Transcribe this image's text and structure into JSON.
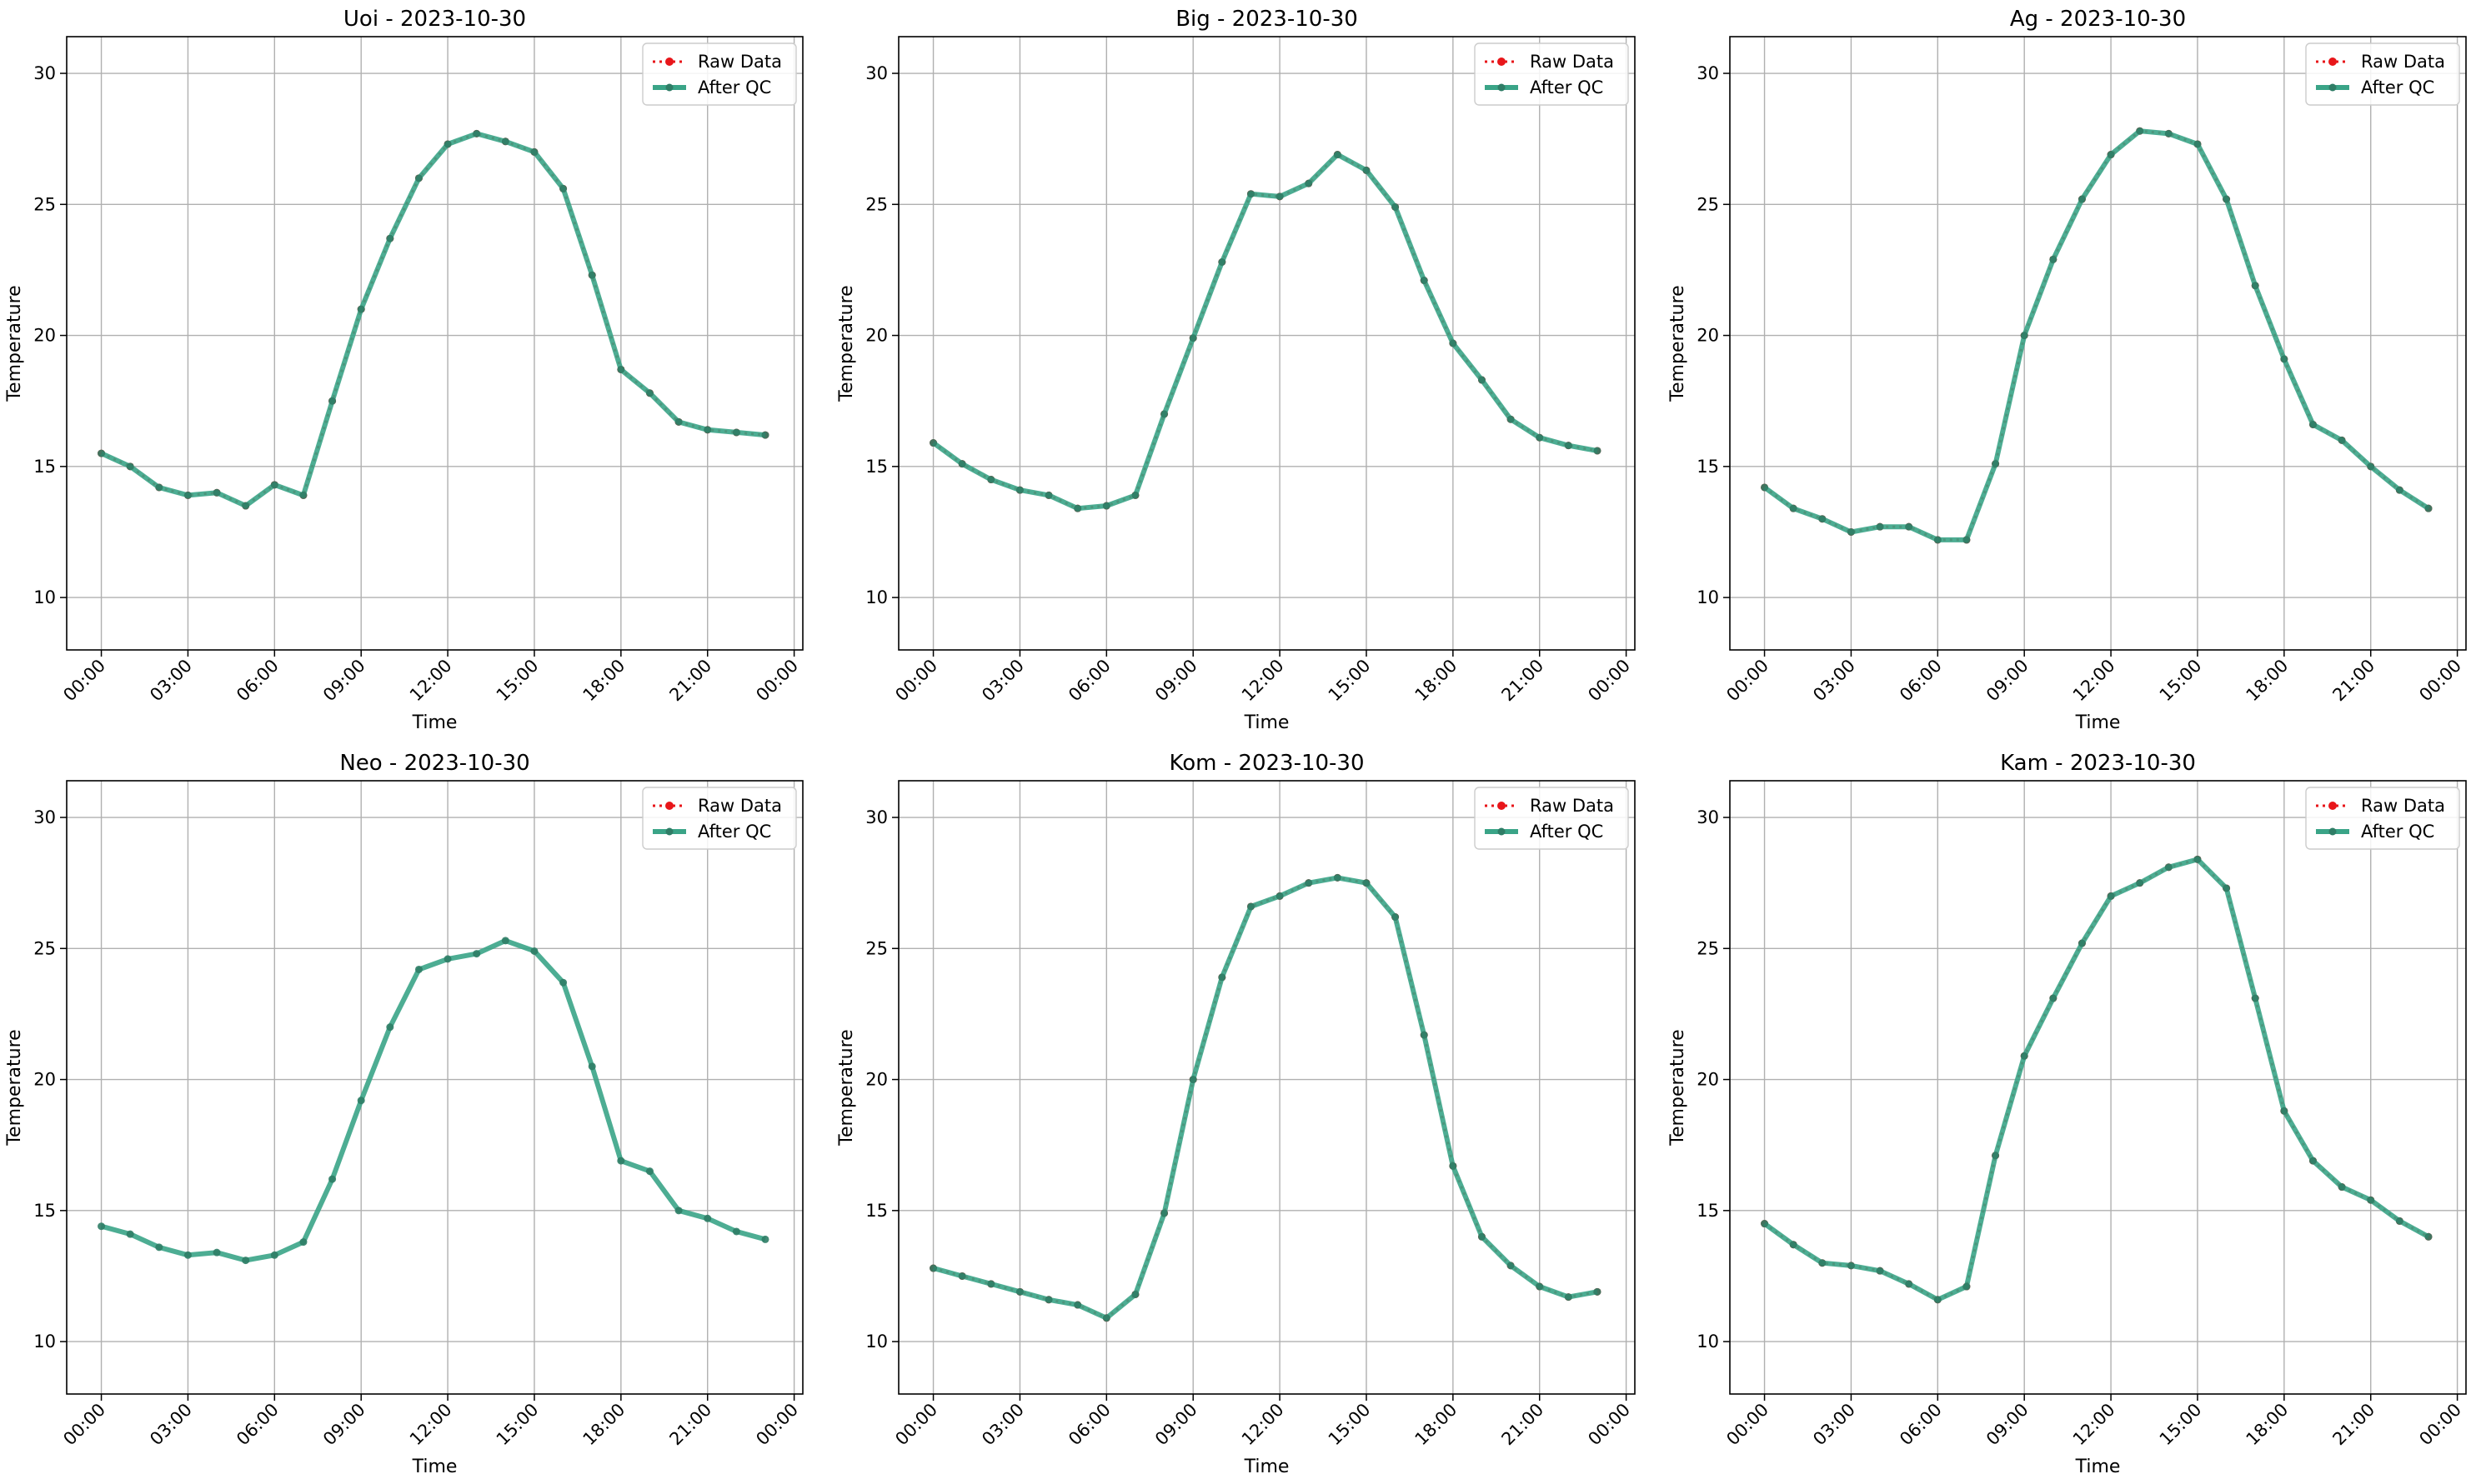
{
  "figure": {
    "legend_labels": {
      "raw": "Raw Data",
      "qc": "After QC"
    },
    "colors": {
      "raw": "#e8161a",
      "qc": "#3aa487",
      "qc_marker": "#2f7d66",
      "grid": "#b0b0b0"
    }
  },
  "chart_data": [
    {
      "type": "line",
      "title": "Uoi - 2023-10-30",
      "xlabel": "Time",
      "ylabel": "Temperature",
      "ylim": [
        8,
        31.4
      ],
      "yticks": [
        10,
        15,
        20,
        25,
        30
      ],
      "xlim_hours": [
        -1.2,
        24.3
      ],
      "xticks": [
        "00:00",
        "03:00",
        "06:00",
        "09:00",
        "12:00",
        "15:00",
        "18:00",
        "21:00",
        "00:00"
      ],
      "grid": true,
      "legend": "top-right",
      "raw_visible": true,
      "x": [
        "00:00",
        "01:00",
        "02:00",
        "03:00",
        "04:00",
        "05:00",
        "06:00",
        "07:00",
        "08:00",
        "09:00",
        "10:00",
        "11:00",
        "12:00",
        "13:00",
        "14:00",
        "15:00",
        "16:00",
        "17:00",
        "18:00",
        "19:00",
        "20:00",
        "21:00",
        "22:00",
        "23:00"
      ],
      "series": [
        {
          "name": "Raw Data",
          "values": [
            15.5,
            15.0,
            14.2,
            13.9,
            14.0,
            13.5,
            14.3,
            13.9,
            17.5,
            21.0,
            23.7,
            26.0,
            27.3,
            27.7,
            27.4,
            27.0,
            25.6,
            22.3,
            18.7,
            17.8,
            16.7,
            16.4,
            16.3,
            16.2
          ]
        },
        {
          "name": "After QC",
          "values": [
            15.5,
            15.0,
            14.2,
            13.9,
            14.0,
            13.5,
            14.3,
            13.9,
            17.5,
            21.0,
            23.7,
            26.0,
            27.3,
            27.7,
            27.4,
            27.0,
            25.6,
            22.3,
            18.7,
            17.8,
            16.7,
            16.4,
            16.3,
            16.2
          ]
        }
      ]
    },
    {
      "type": "line",
      "title": "Big - 2023-10-30",
      "xlabel": "Time",
      "ylabel": "Temperature",
      "ylim": [
        8,
        31.4
      ],
      "yticks": [
        10,
        15,
        20,
        25,
        30
      ],
      "xlim_hours": [
        -1.2,
        24.3
      ],
      "xticks": [
        "00:00",
        "03:00",
        "06:00",
        "09:00",
        "12:00",
        "15:00",
        "18:00",
        "21:00",
        "00:00"
      ],
      "grid": true,
      "legend": "top-right",
      "raw_visible": true,
      "x": [
        "00:00",
        "01:00",
        "02:00",
        "03:00",
        "04:00",
        "05:00",
        "06:00",
        "07:00",
        "08:00",
        "09:00",
        "10:00",
        "11:00",
        "12:00",
        "13:00",
        "14:00",
        "15:00",
        "16:00",
        "17:00",
        "18:00",
        "19:00",
        "20:00",
        "21:00",
        "22:00",
        "23:00"
      ],
      "series": [
        {
          "name": "Raw Data",
          "values": [
            15.9,
            15.1,
            14.5,
            14.1,
            13.9,
            13.4,
            13.5,
            13.9,
            17.0,
            19.9,
            22.8,
            25.4,
            25.3,
            25.8,
            26.9,
            26.3,
            24.9,
            22.1,
            19.7,
            18.3,
            16.8,
            16.1,
            15.8,
            15.6
          ]
        },
        {
          "name": "After QC",
          "values": [
            15.9,
            15.1,
            14.5,
            14.1,
            13.9,
            13.4,
            13.5,
            13.9,
            17.0,
            19.9,
            22.8,
            25.4,
            25.3,
            25.8,
            26.9,
            26.3,
            24.9,
            22.1,
            19.7,
            18.3,
            16.8,
            16.1,
            15.8,
            15.6
          ]
        }
      ]
    },
    {
      "type": "line",
      "title": "Ag - 2023-10-30",
      "xlabel": "Time",
      "ylabel": "Temperature",
      "ylim": [
        8,
        31.4
      ],
      "yticks": [
        10,
        15,
        20,
        25,
        30
      ],
      "xlim_hours": [
        -1.2,
        24.3
      ],
      "xticks": [
        "00:00",
        "03:00",
        "06:00",
        "09:00",
        "12:00",
        "15:00",
        "18:00",
        "21:00",
        "00:00"
      ],
      "grid": true,
      "legend": "top-right",
      "raw_visible": true,
      "x": [
        "00:00",
        "01:00",
        "02:00",
        "03:00",
        "04:00",
        "05:00",
        "06:00",
        "07:00",
        "08:00",
        "09:00",
        "10:00",
        "11:00",
        "12:00",
        "13:00",
        "14:00",
        "15:00",
        "16:00",
        "17:00",
        "18:00",
        "19:00",
        "20:00",
        "21:00",
        "22:00",
        "23:00"
      ],
      "series": [
        {
          "name": "Raw Data",
          "values": [
            14.2,
            13.4,
            13.0,
            12.5,
            12.7,
            12.7,
            12.2,
            12.2,
            15.1,
            20.0,
            22.9,
            25.2,
            26.9,
            27.8,
            27.7,
            27.3,
            25.2,
            21.9,
            19.1,
            16.6,
            16.0,
            15.0,
            14.1,
            13.4
          ]
        },
        {
          "name": "After QC",
          "values": [
            14.2,
            13.4,
            13.0,
            12.5,
            12.7,
            12.7,
            12.2,
            12.2,
            15.1,
            20.0,
            22.9,
            25.2,
            26.9,
            27.8,
            27.7,
            27.3,
            25.2,
            21.9,
            19.1,
            16.6,
            16.0,
            15.0,
            14.1,
            13.4
          ]
        }
      ]
    },
    {
      "type": "line",
      "title": "Neo - 2023-10-30",
      "xlabel": "Time",
      "ylabel": "Temperature",
      "ylim": [
        8,
        31.4
      ],
      "yticks": [
        10,
        15,
        20,
        25,
        30
      ],
      "xlim_hours": [
        -1.2,
        24.3
      ],
      "xticks": [
        "00:00",
        "03:00",
        "06:00",
        "09:00",
        "12:00",
        "15:00",
        "18:00",
        "21:00",
        "00:00"
      ],
      "grid": true,
      "legend": "top-right",
      "raw_visible": false,
      "x": [
        "00:00",
        "01:00",
        "02:00",
        "03:00",
        "04:00",
        "05:00",
        "06:00",
        "07:00",
        "08:00",
        "09:00",
        "10:00",
        "11:00",
        "12:00",
        "13:00",
        "14:00",
        "15:00",
        "16:00",
        "17:00",
        "18:00",
        "19:00",
        "20:00",
        "21:00",
        "22:00",
        "23:00"
      ],
      "series": [
        {
          "name": "Raw Data",
          "values": [
            14.4,
            14.1,
            13.6,
            13.3,
            13.4,
            13.1,
            13.3,
            13.8,
            16.2,
            19.2,
            22.0,
            24.2,
            24.6,
            24.8,
            25.3,
            24.9,
            23.7,
            20.5,
            16.9,
            16.5,
            15.0,
            14.7,
            14.2,
            13.9
          ]
        },
        {
          "name": "After QC",
          "values": [
            14.4,
            14.1,
            13.6,
            13.3,
            13.4,
            13.1,
            13.3,
            13.8,
            16.2,
            19.2,
            22.0,
            24.2,
            24.6,
            24.8,
            25.3,
            24.9,
            23.7,
            20.5,
            16.9,
            16.5,
            15.0,
            14.7,
            14.2,
            13.9
          ]
        }
      ]
    },
    {
      "type": "line",
      "title": "Kom - 2023-10-30",
      "xlabel": "Time",
      "ylabel": "Temperature",
      "ylim": [
        8,
        31.4
      ],
      "yticks": [
        10,
        15,
        20,
        25,
        30
      ],
      "xlim_hours": [
        -1.2,
        24.3
      ],
      "xticks": [
        "00:00",
        "03:00",
        "06:00",
        "09:00",
        "12:00",
        "15:00",
        "18:00",
        "21:00",
        "00:00"
      ],
      "grid": true,
      "legend": "top-right",
      "raw_visible": true,
      "x": [
        "00:00",
        "01:00",
        "02:00",
        "03:00",
        "04:00",
        "05:00",
        "06:00",
        "07:00",
        "08:00",
        "09:00",
        "10:00",
        "11:00",
        "12:00",
        "13:00",
        "14:00",
        "15:00",
        "16:00",
        "17:00",
        "18:00",
        "19:00",
        "20:00",
        "21:00",
        "22:00",
        "23:00"
      ],
      "series": [
        {
          "name": "Raw Data",
          "values": [
            12.8,
            12.5,
            12.2,
            11.9,
            11.6,
            11.4,
            10.9,
            11.8,
            14.9,
            20.0,
            23.9,
            26.6,
            27.0,
            27.5,
            27.7,
            27.5,
            26.2,
            21.7,
            16.7,
            14.0,
            12.9,
            12.1,
            11.7,
            11.9
          ]
        },
        {
          "name": "After QC",
          "values": [
            12.8,
            12.5,
            12.2,
            11.9,
            11.6,
            11.4,
            10.9,
            11.8,
            14.9,
            20.0,
            23.9,
            26.6,
            27.0,
            27.5,
            27.7,
            27.5,
            26.2,
            21.7,
            16.7,
            14.0,
            12.9,
            12.1,
            11.7,
            11.9
          ]
        }
      ]
    },
    {
      "type": "line",
      "title": "Kam - 2023-10-30",
      "xlabel": "Time",
      "ylabel": "Temperature",
      "ylim": [
        8,
        31.4
      ],
      "yticks": [
        10,
        15,
        20,
        25,
        30
      ],
      "xlim_hours": [
        -1.2,
        24.3
      ],
      "xticks": [
        "00:00",
        "03:00",
        "06:00",
        "09:00",
        "12:00",
        "15:00",
        "18:00",
        "21:00",
        "00:00"
      ],
      "grid": true,
      "legend": "top-right",
      "raw_visible": true,
      "x": [
        "00:00",
        "01:00",
        "02:00",
        "03:00",
        "04:00",
        "05:00",
        "06:00",
        "07:00",
        "08:00",
        "09:00",
        "10:00",
        "11:00",
        "12:00",
        "13:00",
        "14:00",
        "15:00",
        "16:00",
        "17:00",
        "18:00",
        "19:00",
        "20:00",
        "21:00",
        "22:00",
        "23:00"
      ],
      "series": [
        {
          "name": "Raw Data",
          "values": [
            14.5,
            13.7,
            13.0,
            12.9,
            12.7,
            12.2,
            11.6,
            12.1,
            17.1,
            20.9,
            23.1,
            25.2,
            27.0,
            27.5,
            28.1,
            28.4,
            27.3,
            23.1,
            18.8,
            16.9,
            15.9,
            15.4,
            14.6,
            14.0
          ]
        },
        {
          "name": "After QC",
          "values": [
            14.5,
            13.7,
            13.0,
            12.9,
            12.7,
            12.2,
            11.6,
            12.1,
            17.1,
            20.9,
            23.1,
            25.2,
            27.0,
            27.5,
            28.1,
            28.4,
            27.3,
            23.1,
            18.8,
            16.9,
            15.9,
            15.4,
            14.6,
            14.0
          ]
        }
      ]
    }
  ]
}
